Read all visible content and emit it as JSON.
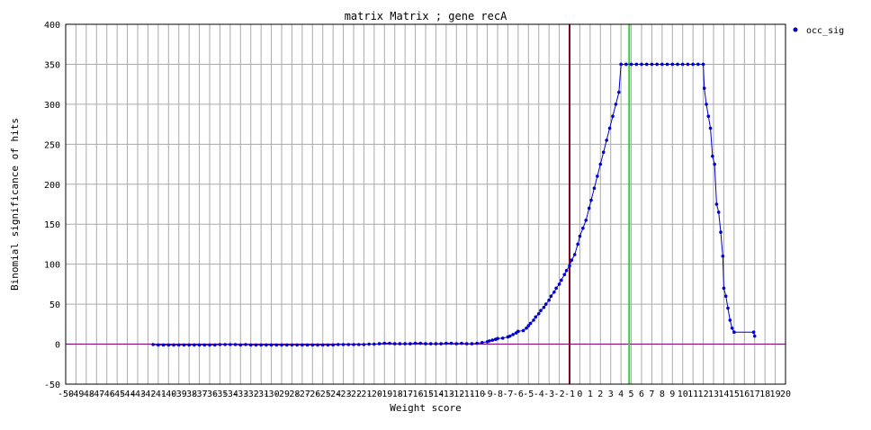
{
  "chart_data": {
    "type": "line",
    "title": "matrix Matrix ; gene recA",
    "xlabel": "Weight score",
    "ylabel": "Binomial significance of hits",
    "xlim": [
      -50,
      20
    ],
    "ylim": [
      -50,
      400
    ],
    "x_ticks": [
      -50,
      -49,
      -48,
      -47,
      -46,
      -45,
      -44,
      -43,
      -42,
      -41,
      -40,
      -39,
      -38,
      -37,
      -36,
      -35,
      -34,
      -33,
      -32,
      -31,
      -30,
      -29,
      -28,
      -27,
      -26,
      -25,
      -24,
      -23,
      -22,
      -21,
      -20,
      -19,
      -18,
      -17,
      -16,
      -15,
      -14,
      -13,
      -12,
      -11,
      -10,
      -9,
      -8,
      -7,
      -6,
      -5,
      -4,
      -3,
      -2,
      -1,
      0,
      1,
      2,
      3,
      4,
      5,
      6,
      7,
      8,
      9,
      10,
      11,
      12,
      13,
      14,
      15,
      16,
      17,
      18,
      19,
      20
    ],
    "y_ticks": [
      -50,
      0,
      50,
      100,
      150,
      200,
      250,
      300,
      350,
      400
    ],
    "grid": true,
    "legend": {
      "position": "top-right",
      "entries": [
        "occ_sig"
      ]
    },
    "reference_lines": [
      {
        "axis": "y",
        "value": 0,
        "color": "#800080"
      },
      {
        "axis": "x",
        "value": -1,
        "color": "#800020"
      },
      {
        "axis": "x",
        "value": 4.8,
        "color": "#33cc33"
      }
    ],
    "series": [
      {
        "name": "occ_sig",
        "color": "#0000cc",
        "points": [
          [
            -41.5,
            -0.5
          ],
          [
            -41,
            -1
          ],
          [
            -40.5,
            -1
          ],
          [
            -40,
            -1
          ],
          [
            -39.5,
            -1
          ],
          [
            -39,
            -1
          ],
          [
            -38.5,
            -1
          ],
          [
            -38,
            -1
          ],
          [
            -37.5,
            -1
          ],
          [
            -37,
            -1
          ],
          [
            -36.5,
            -1
          ],
          [
            -36,
            -1
          ],
          [
            -35.5,
            -1
          ],
          [
            -35,
            -0.5
          ],
          [
            -34.5,
            -0.5
          ],
          [
            -34,
            -0.5
          ],
          [
            -33.5,
            -0.5
          ],
          [
            -33,
            -1
          ],
          [
            -32.5,
            -0.5
          ],
          [
            -32,
            -1
          ],
          [
            -31.5,
            -1
          ],
          [
            -31,
            -1
          ],
          [
            -30.5,
            -1
          ],
          [
            -30,
            -1
          ],
          [
            -29.5,
            -1
          ],
          [
            -29,
            -1
          ],
          [
            -28.5,
            -1
          ],
          [
            -28,
            -1
          ],
          [
            -27.5,
            -1
          ],
          [
            -27,
            -1
          ],
          [
            -26.5,
            -1
          ],
          [
            -26,
            -1
          ],
          [
            -25.5,
            -1
          ],
          [
            -25,
            -1
          ],
          [
            -24.5,
            -1
          ],
          [
            -24,
            -1
          ],
          [
            -23.5,
            -0.5
          ],
          [
            -23,
            -0.5
          ],
          [
            -22.5,
            -0.5
          ],
          [
            -22,
            -0.5
          ],
          [
            -21.5,
            -0.5
          ],
          [
            -21,
            -0.5
          ],
          [
            -20.5,
            0
          ],
          [
            -20,
            0
          ],
          [
            -19.5,
            0.5
          ],
          [
            -19,
            1
          ],
          [
            -18.5,
            1
          ],
          [
            -18,
            0.5
          ],
          [
            -17.5,
            0.5
          ],
          [
            -17,
            0.5
          ],
          [
            -16.5,
            0.5
          ],
          [
            -16,
            1
          ],
          [
            -15.5,
            1
          ],
          [
            -15,
            0.5
          ],
          [
            -14.5,
            0.5
          ],
          [
            -14,
            0.5
          ],
          [
            -13.5,
            0.5
          ],
          [
            -13,
            1
          ],
          [
            -12.5,
            1
          ],
          [
            -12,
            0.5
          ],
          [
            -11.5,
            1
          ],
          [
            -11,
            0.5
          ],
          [
            -10.5,
            0.5
          ],
          [
            -10,
            1
          ],
          [
            -9.5,
            2
          ],
          [
            -9,
            3
          ],
          [
            -8.8,
            4
          ],
          [
            -8.5,
            5
          ],
          [
            -8.2,
            6
          ],
          [
            -8,
            7
          ],
          [
            -7.5,
            7.5
          ],
          [
            -7,
            9
          ],
          [
            -6.8,
            10
          ],
          [
            -6.5,
            12
          ],
          [
            -6.2,
            14
          ],
          [
            -6,
            16
          ],
          [
            -5.5,
            17
          ],
          [
            -5.2,
            20
          ],
          [
            -5,
            23
          ],
          [
            -4.8,
            26
          ],
          [
            -4.5,
            30
          ],
          [
            -4.3,
            34
          ],
          [
            -4,
            38
          ],
          [
            -3.8,
            42
          ],
          [
            -3.5,
            46
          ],
          [
            -3.3,
            50
          ],
          [
            -3,
            55
          ],
          [
            -2.8,
            60
          ],
          [
            -2.5,
            65
          ],
          [
            -2.3,
            70
          ],
          [
            -2,
            75
          ],
          [
            -1.8,
            80
          ],
          [
            -1.5,
            87
          ],
          [
            -1.3,
            92
          ],
          [
            -1,
            98
          ],
          [
            -0.8,
            105
          ],
          [
            -0.5,
            112
          ],
          [
            -0.2,
            125
          ],
          [
            0,
            135
          ],
          [
            0.3,
            145
          ],
          [
            0.6,
            155
          ],
          [
            0.9,
            170
          ],
          [
            1.1,
            180
          ],
          [
            1.4,
            195
          ],
          [
            1.7,
            210
          ],
          [
            2,
            225
          ],
          [
            2.3,
            240
          ],
          [
            2.6,
            255
          ],
          [
            2.9,
            270
          ],
          [
            3.2,
            285
          ],
          [
            3.5,
            300
          ],
          [
            3.8,
            315
          ],
          [
            4,
            350
          ],
          [
            4.5,
            350
          ],
          [
            5,
            350
          ],
          [
            5.5,
            350
          ],
          [
            6,
            350
          ],
          [
            6.5,
            350
          ],
          [
            7,
            350
          ],
          [
            7.5,
            350
          ],
          [
            8,
            350
          ],
          [
            8.5,
            350
          ],
          [
            9,
            350
          ],
          [
            9.5,
            350
          ],
          [
            10,
            350
          ],
          [
            10.5,
            350
          ],
          [
            11,
            350
          ],
          [
            11.5,
            350
          ],
          [
            12,
            350
          ],
          [
            12.1,
            320
          ],
          [
            12.3,
            300
          ],
          [
            12.5,
            285
          ],
          [
            12.7,
            270
          ],
          [
            12.9,
            235
          ],
          [
            13.1,
            225
          ],
          [
            13.3,
            175
          ],
          [
            13.5,
            165
          ],
          [
            13.7,
            140
          ],
          [
            13.9,
            110
          ],
          [
            14.0,
            70
          ],
          [
            14.2,
            60
          ],
          [
            14.4,
            45
          ],
          [
            14.6,
            30
          ],
          [
            14.8,
            20
          ],
          [
            15,
            15
          ],
          [
            16.9,
            15
          ],
          [
            17,
            10
          ]
        ]
      }
    ]
  }
}
